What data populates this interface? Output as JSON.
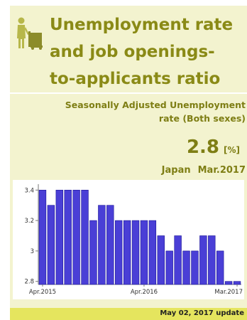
{
  "header": {
    "title_lines": [
      "Unemployment rate",
      "and job openings-",
      "to-applicants ratio"
    ],
    "icon": "worker-with-cart-icon"
  },
  "indicator": {
    "subtitle_line1": "Seasonally Adjusted Unemployment",
    "subtitle_line2": "rate (Both sexes)",
    "value": "2.8",
    "unit": "[%]",
    "region": "Japan",
    "period": "Mar.2017"
  },
  "footer": {
    "update_text": "May 02, 2017 update"
  },
  "colors": {
    "title": "#8a8a16",
    "card_background": "#f3f3cf",
    "bar_fill": "#4a3fd6",
    "bar_stroke": "#1a1496",
    "footer_band": "#e5e55e"
  },
  "chart_data": {
    "type": "bar",
    "categories": [
      "Apr.2015",
      "May.2015",
      "Jun.2015",
      "Jul.2015",
      "Aug.2015",
      "Sep.2015",
      "Oct.2015",
      "Nov.2015",
      "Dec.2015",
      "Jan.2016",
      "Feb.2016",
      "Mar.2016",
      "Apr.2016",
      "May.2016",
      "Jun.2016",
      "Jul.2016",
      "Aug.2016",
      "Sep.2016",
      "Oct.2016",
      "Nov.2016",
      "Dec.2016",
      "Jan.2017",
      "Feb.2017",
      "Mar.2017"
    ],
    "values": [
      3.4,
      3.3,
      3.4,
      3.4,
      3.4,
      3.4,
      3.2,
      3.3,
      3.3,
      3.2,
      3.2,
      3.2,
      3.2,
      3.2,
      3.1,
      3.0,
      3.1,
      3.0,
      3.0,
      3.1,
      3.1,
      3.0,
      2.8,
      2.8
    ],
    "x_tick_labels": [
      "Apr.2015",
      "Apr.2016",
      "Mar.2017"
    ],
    "x_tick_indices": [
      0,
      12,
      23
    ],
    "y_ticks": [
      2.8,
      3,
      3.2,
      3.4
    ],
    "y_tick_labels": [
      "2.8",
      "3",
      "3.2",
      "3.4"
    ],
    "ylim": [
      2.78,
      3.42
    ],
    "grid": false
  }
}
